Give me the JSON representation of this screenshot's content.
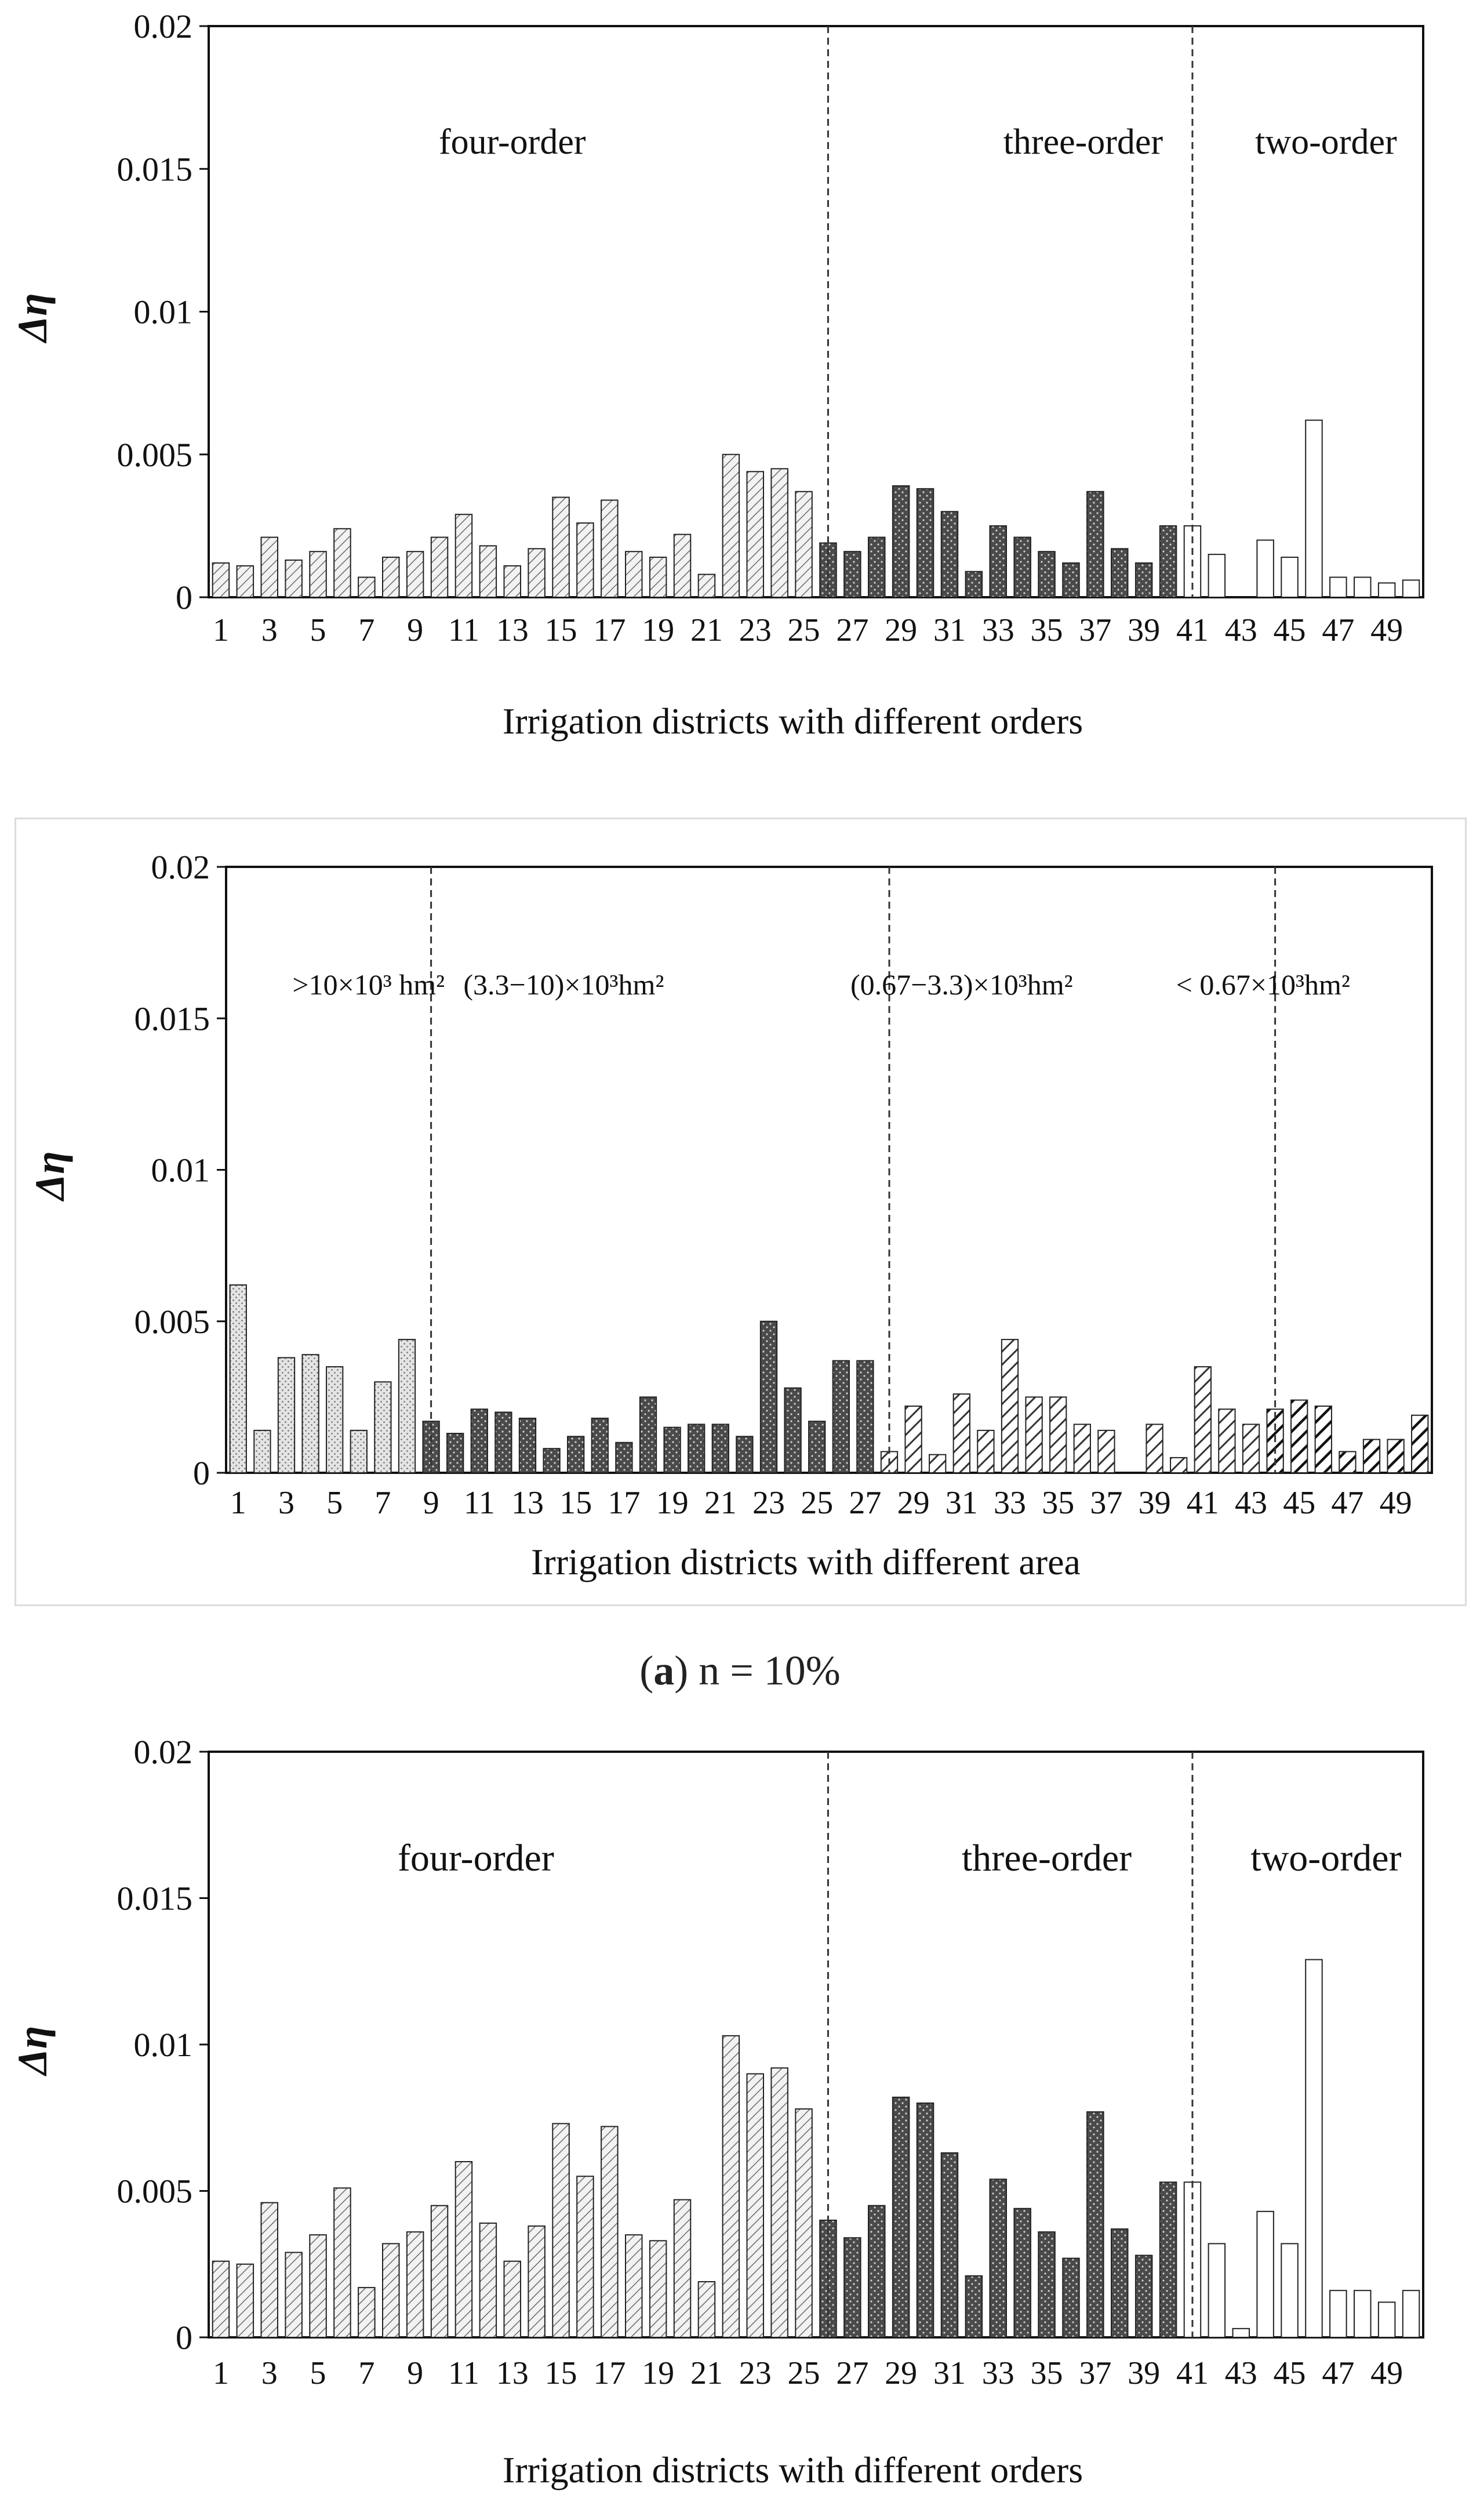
{
  "figure_caption": {
    "label": "a",
    "text": " n = 10%"
  },
  "colors": {
    "axis": "#111111",
    "bar_edge": "#222222",
    "divider": "#333333",
    "frame": "#dcdcdc"
  },
  "chart_data": [
    {
      "type": "bar",
      "title": "",
      "xlabel": "Irrigation districts with different orders",
      "ylabel": "Δη",
      "ylim": [
        0,
        0.02
      ],
      "yticks": [
        "0",
        "0.005",
        "0.01",
        "0.015",
        "0.02"
      ],
      "x_tick_labels": [
        "1",
        "3",
        "5",
        "7",
        "9",
        "11",
        "13",
        "15",
        "17",
        "19",
        "21",
        "23",
        "25",
        "27",
        "29",
        "31",
        "33",
        "35",
        "37",
        "39",
        "41",
        "43",
        "45",
        "47",
        "49"
      ],
      "categories": [
        1,
        2,
        3,
        4,
        5,
        6,
        7,
        8,
        9,
        10,
        11,
        12,
        13,
        14,
        15,
        16,
        17,
        18,
        19,
        20,
        21,
        22,
        23,
        24,
        25,
        26,
        27,
        28,
        29,
        30,
        31,
        32,
        33,
        34,
        35,
        36,
        37,
        38,
        39,
        40,
        41,
        42,
        43,
        44,
        45,
        46,
        47,
        48,
        49,
        50
      ],
      "groups": [
        {
          "label": "four-order",
          "start": 1,
          "end": 25,
          "pattern": "diag-light"
        },
        {
          "label": "three-order",
          "start": 26,
          "end": 40,
          "pattern": "dark-dots"
        },
        {
          "label": "two-order",
          "start": 41,
          "end": 50,
          "pattern": "white"
        }
      ],
      "dividers": [
        25.5,
        40.5
      ],
      "values": [
        0.0012,
        0.0011,
        0.0021,
        0.0013,
        0.0016,
        0.0024,
        0.0007,
        0.0014,
        0.0016,
        0.0021,
        0.0029,
        0.0018,
        0.0011,
        0.0017,
        0.0035,
        0.0026,
        0.0034,
        0.0016,
        0.0014,
        0.0022,
        0.0008,
        0.005,
        0.0044,
        0.0045,
        0.0037,
        0.0019,
        0.0016,
        0.0021,
        0.0039,
        0.0038,
        0.003,
        0.0009,
        0.0025,
        0.0021,
        0.0016,
        0.0012,
        0.0037,
        0.0017,
        0.0012,
        0.0025,
        0.0025,
        0.0015,
        0.0,
        0.002,
        0.0014,
        0.0062,
        0.0007,
        0.0007,
        0.0005,
        0.0006
      ]
    },
    {
      "type": "bar",
      "title": "",
      "xlabel": "Irrigation districts with different area",
      "ylabel": "Δη",
      "ylim": [
        0,
        0.02
      ],
      "yticks": [
        "0",
        "0.005",
        "0.01",
        "0.015",
        "0.02"
      ],
      "x_tick_labels": [
        "1",
        "3",
        "5",
        "7",
        "9",
        "11",
        "13",
        "15",
        "17",
        "19",
        "21",
        "23",
        "25",
        "27",
        "29",
        "31",
        "33",
        "35",
        "37",
        "39",
        "41",
        "43",
        "45",
        "47",
        "49"
      ],
      "categories": [
        1,
        2,
        3,
        4,
        5,
        6,
        7,
        8,
        9,
        10,
        11,
        12,
        13,
        14,
        15,
        16,
        17,
        18,
        19,
        20,
        21,
        22,
        23,
        24,
        25,
        26,
        27,
        28,
        29,
        30,
        31,
        32,
        33,
        34,
        35,
        36,
        37,
        38,
        39,
        40,
        41,
        42,
        43,
        44,
        45,
        46,
        47,
        48,
        49,
        50
      ],
      "groups": [
        {
          "label": ">10×10³ hm²",
          "start": 1,
          "end": 8,
          "pattern": "light-dots"
        },
        {
          "label": "(3.3−10)×10³hm²",
          "start": 9,
          "end": 27,
          "pattern": "dark-dots"
        },
        {
          "label": "(0.67−3.3)×10³hm²",
          "start": 28,
          "end": 43,
          "pattern": "diag-bold"
        },
        {
          "label": "< 0.67×10³hm²",
          "start": 44,
          "end": 50,
          "pattern": "diag-black"
        }
      ],
      "dividers": [
        8.5,
        27.5,
        43.5
      ],
      "values": [
        0.0062,
        0.0014,
        0.0038,
        0.0039,
        0.0035,
        0.0014,
        0.003,
        0.0044,
        0.0017,
        0.0013,
        0.0021,
        0.002,
        0.0018,
        0.0008,
        0.0012,
        0.0018,
        0.001,
        0.0025,
        0.0015,
        0.0016,
        0.0016,
        0.0012,
        0.005,
        0.0028,
        0.0017,
        0.0037,
        0.0037,
        0.0007,
        0.0022,
        0.0006,
        0.0026,
        0.0014,
        0.0044,
        0.0025,
        0.0025,
        0.0016,
        0.0014,
        0.0,
        0.0016,
        0.0005,
        0.0035,
        0.0021,
        0.0016,
        0.0021,
        0.0024,
        0.0022,
        0.0007,
        0.0011,
        0.0011,
        0.0019
      ]
    },
    {
      "type": "bar",
      "title": "",
      "xlabel": "Irrigation districts with different orders",
      "ylabel": "Δη",
      "ylim": [
        0,
        0.02
      ],
      "yticks": [
        "0",
        "0.005",
        "0.01",
        "0.015",
        "0.02"
      ],
      "x_tick_labels": [
        "1",
        "3",
        "5",
        "7",
        "9",
        "11",
        "13",
        "15",
        "17",
        "19",
        "21",
        "23",
        "25",
        "27",
        "29",
        "31",
        "33",
        "35",
        "37",
        "39",
        "41",
        "43",
        "45",
        "47",
        "49"
      ],
      "categories": [
        1,
        2,
        3,
        4,
        5,
        6,
        7,
        8,
        9,
        10,
        11,
        12,
        13,
        14,
        15,
        16,
        17,
        18,
        19,
        20,
        21,
        22,
        23,
        24,
        25,
        26,
        27,
        28,
        29,
        30,
        31,
        32,
        33,
        34,
        35,
        36,
        37,
        38,
        39,
        40,
        41,
        42,
        43,
        44,
        45,
        46,
        47,
        48,
        49,
        50
      ],
      "groups": [
        {
          "label": "four-order",
          "start": 1,
          "end": 25,
          "pattern": "diag-light"
        },
        {
          "label": "three-order",
          "start": 26,
          "end": 40,
          "pattern": "dark-dots"
        },
        {
          "label": "two-order",
          "start": 41,
          "end": 50,
          "pattern": "white"
        }
      ],
      "dividers": [
        25.5,
        40.5
      ],
      "values": [
        0.0026,
        0.0025,
        0.0046,
        0.0029,
        0.0035,
        0.0051,
        0.0017,
        0.0032,
        0.0036,
        0.0045,
        0.006,
        0.0039,
        0.0026,
        0.0038,
        0.0073,
        0.0055,
        0.0072,
        0.0035,
        0.0033,
        0.0047,
        0.0019,
        0.0103,
        0.009,
        0.0092,
        0.0078,
        0.004,
        0.0034,
        0.0045,
        0.0082,
        0.008,
        0.0063,
        0.0021,
        0.0054,
        0.0044,
        0.0036,
        0.0027,
        0.0077,
        0.0037,
        0.0028,
        0.0053,
        0.0053,
        0.0032,
        0.0003,
        0.0043,
        0.0032,
        0.0129,
        0.0016,
        0.0016,
        0.0012,
        0.0016
      ]
    }
  ]
}
